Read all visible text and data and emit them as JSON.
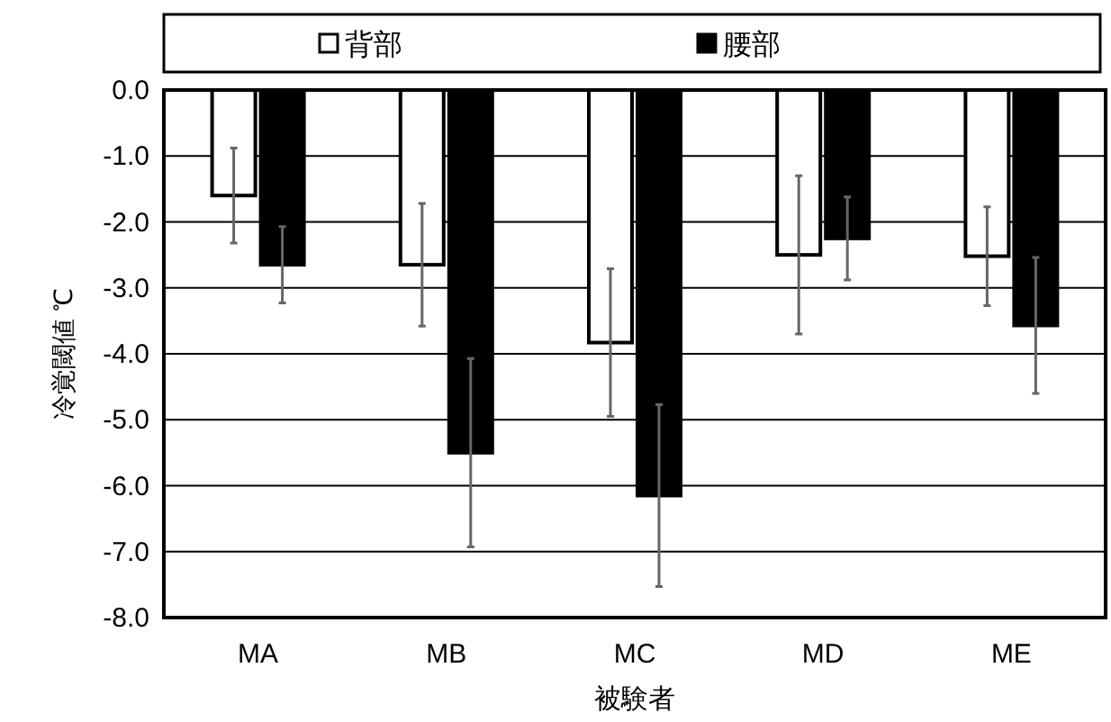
{
  "chart_data": {
    "type": "bar",
    "xlabel": "被験者",
    "ylabel": "冷覚閾値 ℃",
    "categories": [
      "MA",
      "MB",
      "MC",
      "MD",
      "ME"
    ],
    "series": [
      {
        "name": "背部",
        "color": "#ffffff",
        "values": [
          -1.6,
          -2.65,
          -3.83,
          -2.5,
          -2.52
        ],
        "errors": [
          0.72,
          0.93,
          1.12,
          1.2,
          0.75
        ]
      },
      {
        "name": "腰部",
        "color": "#000000",
        "values": [
          -2.65,
          -5.5,
          -6.15,
          -2.25,
          -3.57
        ],
        "errors": [
          0.58,
          1.43,
          1.38,
          0.63,
          1.03
        ]
      }
    ],
    "ylim": [
      -8,
      0
    ],
    "yticks": [
      {
        "value": 0,
        "label": "0.0"
      },
      {
        "value": -1,
        "label": "-1.0"
      },
      {
        "value": -2,
        "label": "-2.0"
      },
      {
        "value": -3,
        "label": "-3.0"
      },
      {
        "value": -4,
        "label": "-4.0"
      },
      {
        "value": -5,
        "label": "-5.0"
      },
      {
        "value": -6,
        "label": "-6.0"
      },
      {
        "value": -7,
        "label": "-7.0"
      },
      {
        "value": -8,
        "label": "-8.0"
      }
    ],
    "grid": "y",
    "legend": "top"
  }
}
